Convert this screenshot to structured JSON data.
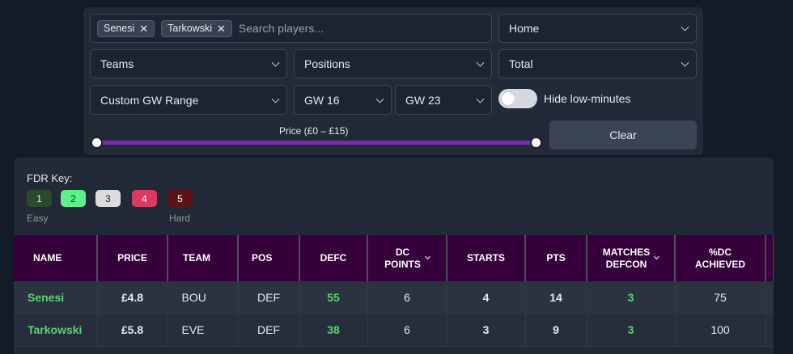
{
  "filters": {
    "search": {
      "chips": [
        "Senesi",
        "Tarkowski"
      ],
      "remove_glyph": "✕",
      "placeholder": "Search players..."
    },
    "venue": "Home",
    "teams": "Teams",
    "positions": "Positions",
    "aggregation": "Total",
    "gw_mode": "Custom GW Range",
    "gw_from": "GW 16",
    "gw_to": "GW 23",
    "hide_low_minutes": {
      "label": "Hide low-minutes",
      "on": false
    },
    "price": {
      "label": "Price (£0 – £15)",
      "min": 0,
      "max": 15,
      "low": 0,
      "high": 15
    },
    "clear_label": "Clear"
  },
  "fdr": {
    "title": "FDR Key:",
    "levels": [
      {
        "value": "1",
        "bg": "#2a4a2c",
        "fg": "#e6e9ef"
      },
      {
        "value": "2",
        "bg": "#5ef08a",
        "fg": "#15301c"
      },
      {
        "value": "3",
        "bg": "#dcdcdc",
        "fg": "#202020"
      },
      {
        "value": "4",
        "bg": "#d93a62",
        "fg": "#ffffff"
      },
      {
        "value": "5",
        "bg": "#5c1218",
        "fg": "#ffffff"
      }
    ],
    "easy_label": "Easy",
    "hard_label": "Hard"
  },
  "table": {
    "headers": {
      "name": "NAME",
      "price": "PRICE",
      "team": "TEAM",
      "pos": "POS",
      "defc": "DEFC",
      "dc_points_1": "DC",
      "dc_points_2": "POINTS",
      "starts": "STARTS",
      "pts": "PTS",
      "matches_defcon_1": "MATCHES",
      "matches_defcon_2": "DEFCON",
      "dc_achieved_1": "%DC",
      "dc_achieved_2": "ACHIEVED"
    },
    "rows": [
      {
        "name": "Senesi",
        "price": "£4.8",
        "team": "BOU",
        "pos": "DEF",
        "defc": "55",
        "dc_points": "6",
        "starts": "4",
        "pts": "14",
        "matches_defcon": "3",
        "dc_achieved": "75"
      },
      {
        "name": "Tarkowski",
        "price": "£5.8",
        "team": "EVE",
        "pos": "DEF",
        "defc": "38",
        "dc_points": "6",
        "starts": "3",
        "pts": "9",
        "matches_defcon": "3",
        "dc_achieved": "100"
      }
    ]
  },
  "colors": {
    "header_bg": "#36003a",
    "accent_green": "#5fd07a",
    "slider": "#7b2cb3"
  }
}
